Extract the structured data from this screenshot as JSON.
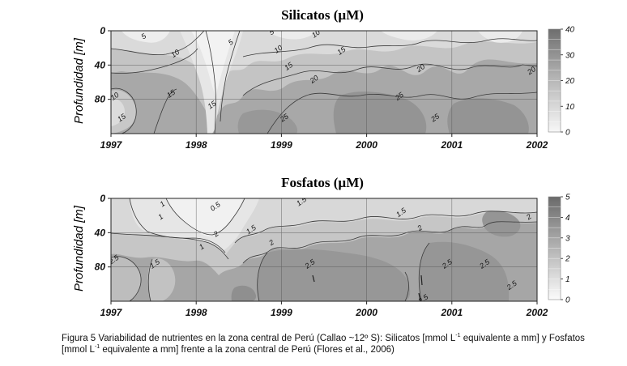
{
  "chart_data": [
    {
      "type": "heatmap",
      "title": "Silicatos (µM)",
      "ylabel": "Profundidad [m]",
      "xlabel": "",
      "x_ticks": [
        "1997",
        "1998",
        "1999",
        "2000",
        "2001",
        "2002"
      ],
      "y_ticks": [
        "0",
        "40",
        "80"
      ],
      "xlim": [
        1997,
        2002
      ],
      "ylim": [
        0,
        120
      ],
      "y_inverted": true,
      "grid": true,
      "colorbar": {
        "ticks": [
          "0",
          "10",
          "20",
          "30",
          "40"
        ],
        "range": [
          0,
          40
        ]
      },
      "contour_levels": [
        5,
        10,
        15,
        20,
        25
      ],
      "contour_labels": [
        {
          "text": "5",
          "x": 1997.4,
          "y": 5
        },
        {
          "text": "10",
          "x": 1997.77,
          "y": 25
        },
        {
          "text": "5",
          "x": 1998.42,
          "y": 12
        },
        {
          "text": "5",
          "x": 1998.9,
          "y": 0
        },
        {
          "text": "10",
          "x": 1999.42,
          "y": 2
        },
        {
          "text": "10",
          "x": 1998.98,
          "y": 20
        },
        {
          "text": "15",
          "x": 1999.1,
          "y": 40
        },
        {
          "text": "15",
          "x": 1999.72,
          "y": 22
        },
        {
          "text": "20",
          "x": 1999.4,
          "y": 55
        },
        {
          "text": "20",
          "x": 2000.65,
          "y": 42
        },
        {
          "text": "25",
          "x": 2000.4,
          "y": 75
        },
        {
          "text": "20",
          "x": 2001.95,
          "y": 45
        },
        {
          "text": "25",
          "x": 1999.05,
          "y": 100
        },
        {
          "text": "25",
          "x": 2000.82,
          "y": 100
        },
        {
          "text": "15",
          "x": 1997.72,
          "y": 72
        },
        {
          "text": "15",
          "x": 1998.2,
          "y": 85
        },
        {
          "text": "10",
          "x": 1997.06,
          "y": 75
        },
        {
          "text": "15",
          "x": 1997.14,
          "y": 100
        }
      ]
    },
    {
      "type": "heatmap",
      "title": "Fosfatos (µM)",
      "ylabel": "Profundidad [m]",
      "xlabel": "",
      "x_ticks": [
        "1997",
        "1998",
        "1999",
        "2000",
        "2001",
        "2002"
      ],
      "y_ticks": [
        "0",
        "40",
        "80"
      ],
      "xlim": [
        1997,
        2002
      ],
      "ylim": [
        0,
        120
      ],
      "y_inverted": true,
      "grid": true,
      "colorbar": {
        "ticks": [
          "0",
          "1",
          "2",
          "3",
          "4",
          "5"
        ],
        "range": [
          0,
          5
        ]
      },
      "contour_levels": [
        0.5,
        1,
        1.5,
        2,
        2.5
      ],
      "contour_labels": [
        {
          "text": "1",
          "x": 1997.62,
          "y": 5
        },
        {
          "text": "0.5",
          "x": 1998.24,
          "y": 8
        },
        {
          "text": "1",
          "x": 1997.6,
          "y": 20
        },
        {
          "text": "2",
          "x": 1998.25,
          "y": 40
        },
        {
          "text": "1",
          "x": 1998.08,
          "y": 55
        },
        {
          "text": "1.5",
          "x": 1998.66,
          "y": 35
        },
        {
          "text": "2",
          "x": 1998.9,
          "y": 50
        },
        {
          "text": "1.5",
          "x": 1999.25,
          "y": 2
        },
        {
          "text": "1.5",
          "x": 2000.42,
          "y": 15
        },
        {
          "text": "2",
          "x": 2000.64,
          "y": 33
        },
        {
          "text": "2",
          "x": 2001.92,
          "y": 20
        },
        {
          "text": "2.5",
          "x": 1997.05,
          "y": 70
        },
        {
          "text": "1.5",
          "x": 1997.53,
          "y": 75
        },
        {
          "text": "2.5",
          "x": 2000.96,
          "y": 75
        },
        {
          "text": "2.5",
          "x": 2001.4,
          "y": 75
        },
        {
          "text": "2.5",
          "x": 2001.72,
          "y": 100
        },
        {
          "text": "2.5",
          "x": 1999.35,
          "y": 75
        },
        {
          "text": "2.5",
          "x": 2000.68,
          "y": 116
        }
      ]
    }
  ],
  "caption": {
    "line1_a": "Figura 5 Variabilidad de nutrientes en la zona central de Perú (Callao ~12º S): Silicatos [mmol L",
    "line1_sup": "-1",
    "line1_b": " equivalente a mm] y Fosfatos",
    "line2_a": "[mmol L",
    "line2_sup": "-1",
    "line2_b": " equivalente a mm] frente a la zona central de Perú (Flores et al., 2006)"
  }
}
